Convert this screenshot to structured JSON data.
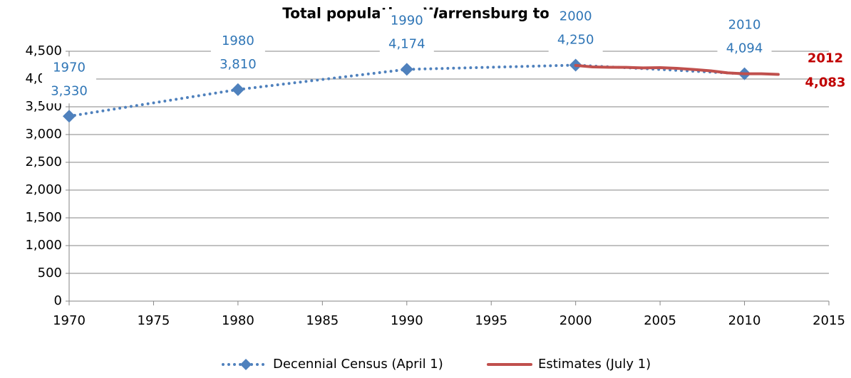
{
  "chart_data": {
    "type": "line",
    "title": "Total population, Warrensburg town",
    "series": [
      {
        "name": "Decennial Census (April 1)",
        "color": "#4f81bd",
        "style": "dotted",
        "marker": "diamond",
        "x": [
          1970,
          1980,
          1990,
          2000,
          2010
        ],
        "values": [
          3330,
          3810,
          4174,
          4250,
          4094
        ],
        "value_labels": [
          "3,330",
          "3,810",
          "4,174",
          "4,250",
          "4,094"
        ]
      },
      {
        "name": "Estimates (July 1)",
        "color": "#c0504d",
        "style": "solid",
        "x": [
          2000,
          2001,
          2002,
          2003,
          2004,
          2005,
          2006,
          2007,
          2008,
          2009,
          2010,
          2011,
          2012
        ],
        "values": [
          4245,
          4218,
          4212,
          4210,
          4200,
          4205,
          4192,
          4172,
          4148,
          4110,
          4094,
          4095,
          4083
        ],
        "value_labels": [
          null,
          null,
          null,
          null,
          null,
          null,
          null,
          null,
          null,
          null,
          null,
          null,
          "4,083"
        ]
      }
    ],
    "xlim": [
      1970,
      2015
    ],
    "xticks": [
      1970,
      1975,
      1980,
      1985,
      1990,
      1995,
      2000,
      2005,
      2010,
      2015
    ],
    "ylim": [
      0,
      4500
    ],
    "yticks": [
      0,
      500,
      {
        "value": 1000,
        "label": "1,000"
      },
      {
        "value": 1500,
        "label": "1,500"
      },
      {
        "value": 2000,
        "label": "2,000"
      },
      {
        "value": 2500,
        "label": "2,500"
      },
      {
        "value": 3000,
        "label": "3,000"
      },
      {
        "value": 3500,
        "label": "3,500"
      },
      {
        "value": 4000,
        "label": "4,000"
      },
      {
        "value": 4500,
        "label": "4,500"
      }
    ],
    "grid": true,
    "legend": "bottom"
  }
}
